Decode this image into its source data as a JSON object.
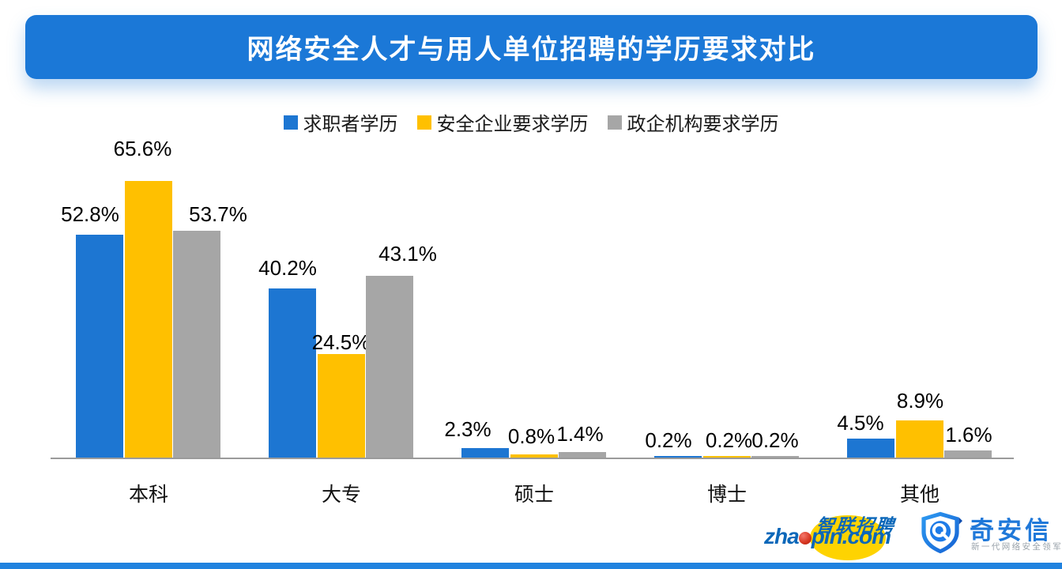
{
  "title": "网络安全人才与用人单位招聘的学历要求对比",
  "chart_data": {
    "type": "bar",
    "title": "网络安全人才与用人单位招聘的学历要求对比",
    "categories": [
      "本科",
      "大专",
      "硕士",
      "博士",
      "其他"
    ],
    "series": [
      {
        "name": "求职者学历",
        "color": "#1d76d2",
        "values": [
          52.8,
          40.2,
          2.3,
          0.2,
          4.5
        ]
      },
      {
        "name": "安全企业要求学历",
        "color": "#ffc000",
        "values": [
          65.6,
          24.5,
          0.8,
          0.2,
          8.9
        ]
      },
      {
        "name": "政企机构要求学历",
        "color": "#a6a6a6",
        "values": [
          53.7,
          43.1,
          1.4,
          0.2,
          1.6
        ]
      }
    ],
    "value_suffix": "%",
    "xlabel": "",
    "ylabel": "",
    "ylim": [
      0,
      70
    ],
    "grid": false,
    "legend_position": "top",
    "data_labels": true
  },
  "colors": {
    "banner_blue": "#1b78d7",
    "bar_blue": "#1d76d2",
    "bar_yellow": "#ffc000",
    "bar_gray": "#a6a6a6",
    "axis_line": "#9b9b9b",
    "bottom_strip_blue": "#2082df"
  },
  "footer": {
    "zhaopin": {
      "chinese": "智联招聘",
      "domain_prefix": "zha",
      "domain_suffix": "pin.com",
      "brand_blue": "#0b67b9",
      "circle_yellow": "#fed301",
      "dot_red": "#c62a1c"
    },
    "qianxin": {
      "name": "奇安信",
      "tagline": "新一代网络安全领军者",
      "brand_blue": "#1f78d9"
    }
  }
}
